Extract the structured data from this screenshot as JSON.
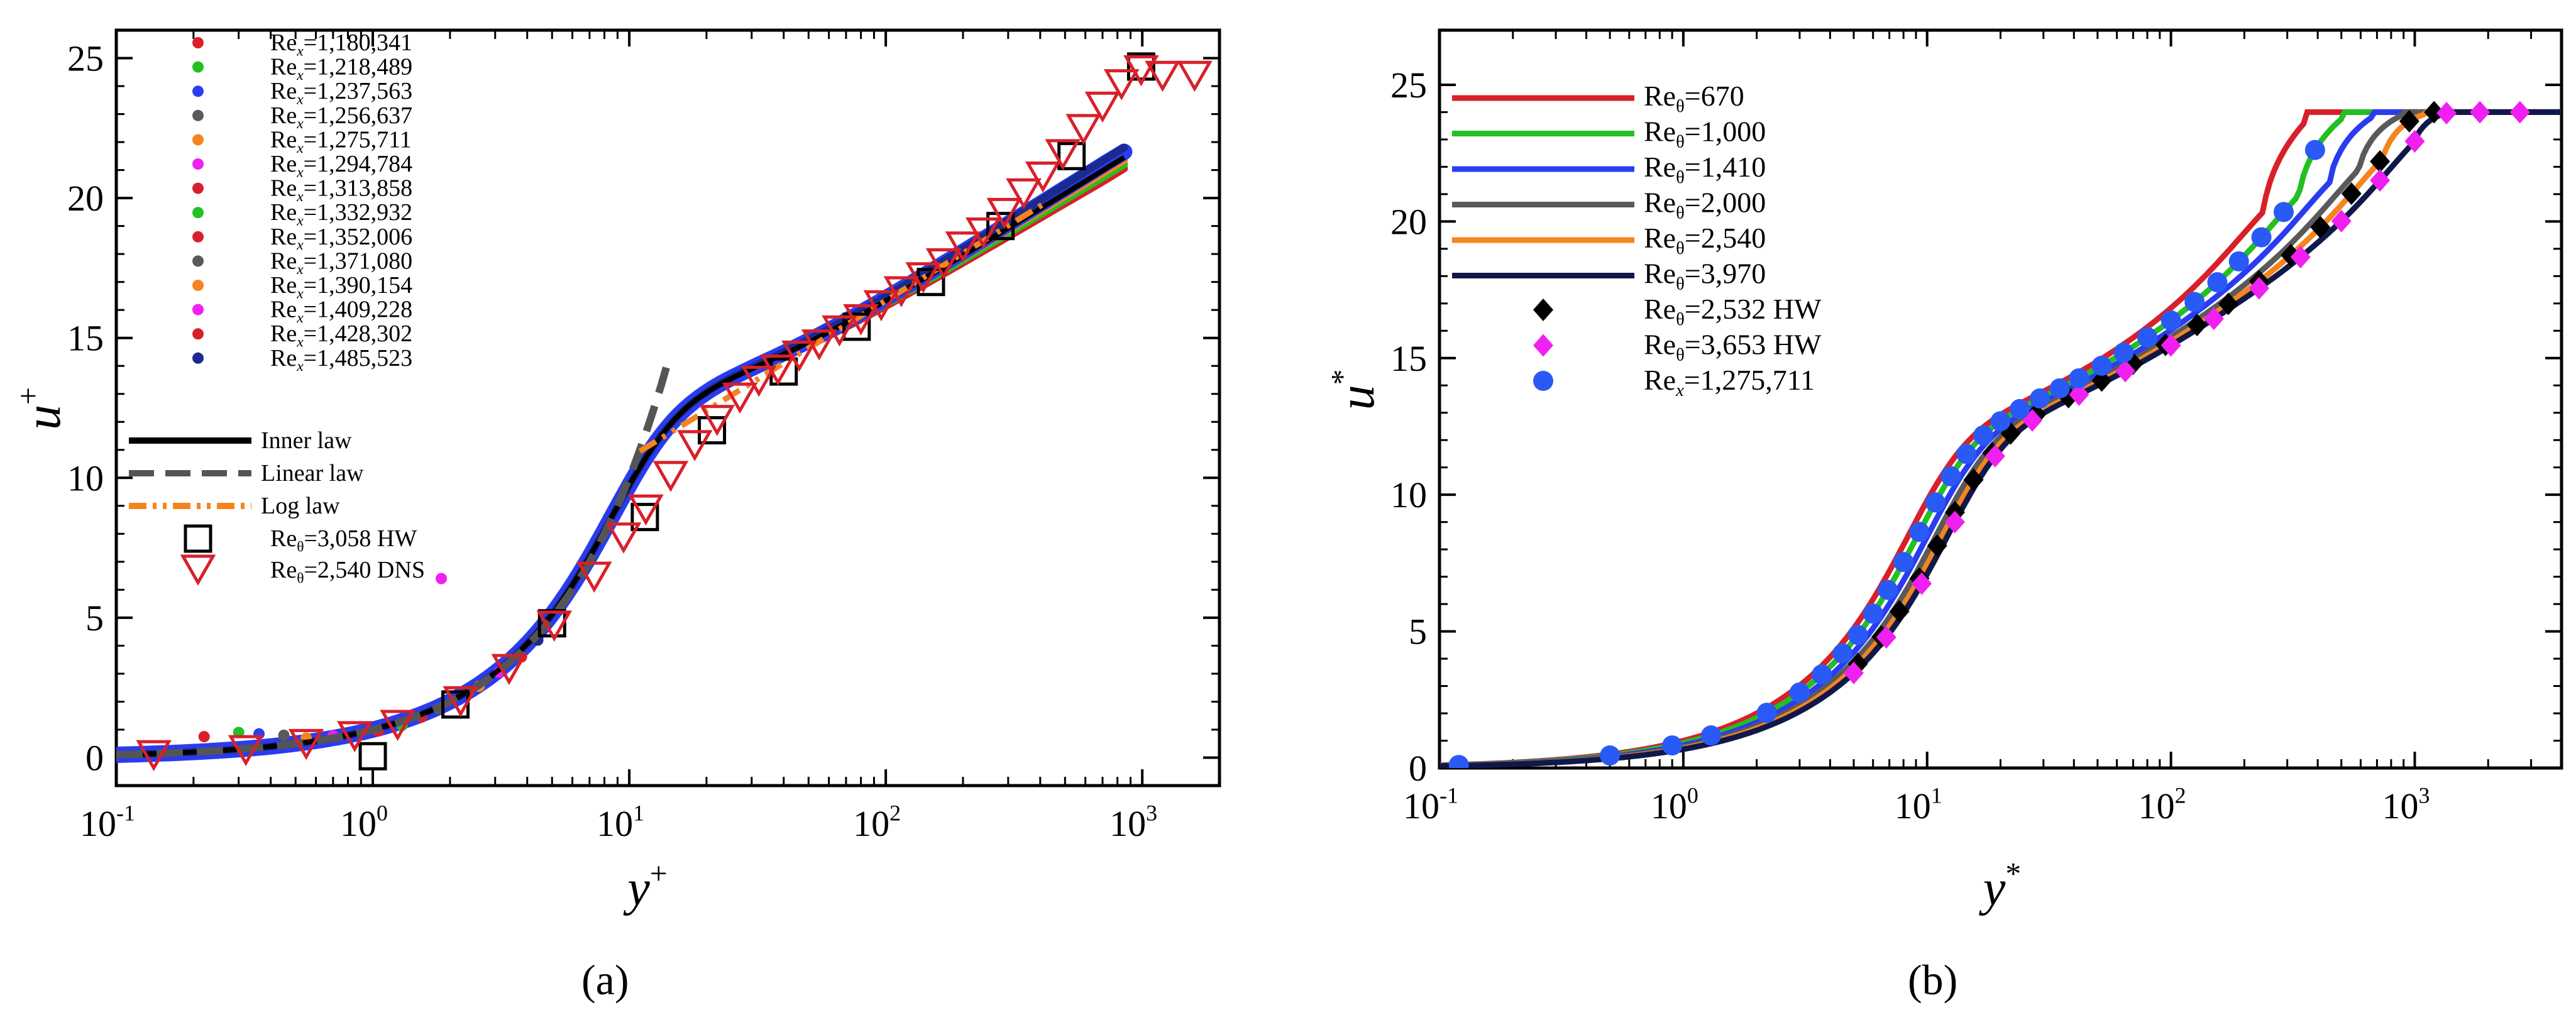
{
  "figure": {
    "caption_a": "(a)",
    "caption_b": "(b)"
  },
  "chart_data": [
    {
      "id": "a",
      "type": "scatter",
      "xscale": "log",
      "xlim": [
        0.1,
        2000
      ],
      "ylim": [
        -1,
        26
      ],
      "xticks": [
        0.1,
        1,
        10,
        100,
        1000
      ],
      "xtick_labels": [
        [
          "10",
          "-1"
        ],
        [
          "10",
          "0"
        ],
        [
          "10",
          "1"
        ],
        [
          "10",
          "2"
        ],
        [
          "10",
          "3"
        ]
      ],
      "yticks": [
        0,
        5,
        10,
        15,
        20,
        25
      ],
      "ytick_labels": [
        "0",
        "5",
        "10",
        "15",
        "20",
        "25"
      ],
      "xlabel": "y",
      "xlabel_sup": "+",
      "ylabel": "u",
      "ylabel_sup": "+",
      "legend_position": "top-left",
      "series": [
        {
          "name": "Re_x=1,180,341",
          "kind": "dot",
          "color": "#d8202a",
          "sub": "x",
          "label_rest": "=1,180,341",
          "id": 0
        },
        {
          "name": "Re_x=1,218,489",
          "kind": "dot",
          "color": "#22c020",
          "sub": "x",
          "label_rest": "=1,218,489",
          "id": 1
        },
        {
          "name": "Re_x=1,237,563",
          "kind": "dot",
          "color": "#2a3cf0",
          "sub": "x",
          "label_rest": "=1,237,563",
          "id": 2
        },
        {
          "name": "Re_x=1,256,637",
          "kind": "dot",
          "color": "#5a5a5a",
          "sub": "x",
          "label_rest": "=1,256,637",
          "id": 3
        },
        {
          "name": "Re_x=1,275,711",
          "kind": "dot",
          "color": "#f5841f",
          "sub": "x",
          "label_rest": "=1,275,711",
          "id": 4
        },
        {
          "name": "Re_x=1,294,784",
          "kind": "dot",
          "color": "#f020f0",
          "sub": "x",
          "label_rest": "=1,294,784",
          "id": 5
        },
        {
          "name": "Re_x=1,313,858",
          "kind": "dot",
          "color": "#d8202a",
          "sub": "x",
          "label_rest": "=1,313,858",
          "id": 6
        },
        {
          "name": "Re_x=1,332,932",
          "kind": "dot",
          "color": "#22c020",
          "sub": "x",
          "label_rest": "=1,332,932",
          "id": 7
        },
        {
          "name": "Re_x=1,352,006",
          "kind": "dot",
          "color": "#d8202a",
          "sub": "x",
          "label_rest": "=1,352,006",
          "id": 8
        },
        {
          "name": "Re_x=1,371,080",
          "kind": "dot",
          "color": "#5a5a5a",
          "sub": "x",
          "label_rest": "=1,371,080",
          "id": 9
        },
        {
          "name": "Re_x=1,390,154",
          "kind": "dot",
          "color": "#f5841f",
          "sub": "x",
          "label_rest": "=1,390,154",
          "id": 10
        },
        {
          "name": "Re_x=1,409,228",
          "kind": "dot",
          "color": "#f020f0",
          "sub": "x",
          "label_rest": "=1,409,228",
          "id": 11
        },
        {
          "name": "Re_x=1,428,302",
          "kind": "dot",
          "color": "#d8202a",
          "sub": "x",
          "label_rest": "=1,428,302",
          "id": 12
        },
        {
          "name": "Re_x=1,485,523",
          "kind": "dot",
          "color": "#1a2a90",
          "sub": "x",
          "label_rest": "=1,485,523",
          "id": 13
        },
        {
          "name": "Inner law",
          "kind": "line",
          "color": "#000000",
          "dash": "solid",
          "label": "Inner law"
        },
        {
          "name": "Linear law",
          "kind": "line",
          "color": "#555555",
          "dash": "dash",
          "label": "Linear law"
        },
        {
          "name": "Log law",
          "kind": "line",
          "color": "#f5841f",
          "dash": "dashdotdot",
          "label": "Log law"
        },
        {
          "name": "Re_theta=3,058 HW",
          "kind": "square",
          "color": "#000000",
          "sub": "θ",
          "label_rest": "=3,058 HW"
        },
        {
          "name": "Re_theta=2,540 DNS",
          "kind": "triangle",
          "color": "#d8202a",
          "sub": "θ",
          "label_rest": "=2,540 DNS"
        }
      ],
      "hw_points": [
        [
          1.0,
          0.05
        ],
        [
          2.1,
          1.9
        ],
        [
          5.0,
          4.8
        ],
        [
          11.5,
          8.6
        ],
        [
          21,
          11.7
        ],
        [
          40,
          13.8
        ],
        [
          77,
          15.4
        ],
        [
          150,
          17.0
        ],
        [
          280,
          19.0
        ],
        [
          530,
          21.5
        ],
        [
          990,
          24.7
        ]
      ],
      "dns_points": [
        [
          0.14,
          0.12
        ],
        [
          0.32,
          0.3
        ],
        [
          0.55,
          0.52
        ],
        [
          0.85,
          0.8
        ],
        [
          1.25,
          1.2
        ],
        [
          2.2,
          2.05
        ],
        [
          3.4,
          3.2
        ],
        [
          5.1,
          4.75
        ],
        [
          7.3,
          6.5
        ],
        [
          9.5,
          7.9
        ],
        [
          11.6,
          8.9
        ],
        [
          14.5,
          10.1
        ],
        [
          18,
          11.2
        ],
        [
          22,
          12.1
        ],
        [
          27,
          12.9
        ],
        [
          32,
          13.5
        ],
        [
          38,
          13.9
        ],
        [
          46,
          14.4
        ],
        [
          55,
          14.8
        ],
        [
          66,
          15.3
        ],
        [
          80,
          15.7
        ],
        [
          96,
          16.2
        ],
        [
          115,
          16.7
        ],
        [
          140,
          17.2
        ],
        [
          168,
          17.7
        ],
        [
          200,
          18.3
        ],
        [
          240,
          18.8
        ],
        [
          290,
          19.5
        ],
        [
          345,
          20.2
        ],
        [
          410,
          20.8
        ],
        [
          490,
          21.6
        ],
        [
          590,
          22.5
        ],
        [
          700,
          23.3
        ],
        [
          830,
          24.1
        ],
        [
          990,
          24.6
        ],
        [
          1200,
          24.4
        ],
        [
          1600,
          24.4
        ]
      ],
      "stray_point": [
        1.85,
        6.4
      ]
    },
    {
      "id": "b",
      "type": "line",
      "xscale": "log",
      "xlim": [
        0.1,
        4000
      ],
      "ylim": [
        0,
        27
      ],
      "xticks": [
        0.1,
        1,
        10,
        100,
        1000
      ],
      "xtick_labels": [
        [
          "10",
          "-1"
        ],
        [
          "10",
          "0"
        ],
        [
          "10",
          "1"
        ],
        [
          "10",
          "2"
        ],
        [
          "10",
          "3"
        ]
      ],
      "yticks": [
        0,
        5,
        10,
        15,
        20,
        25
      ],
      "ytick_labels": [
        "0",
        "5",
        "10",
        "15",
        "20",
        "25"
      ],
      "xlabel": "y",
      "xlabel_sup": "*",
      "ylabel": "u",
      "ylabel_sup": "*",
      "legend_position": "top-left",
      "plateau": 24,
      "series": [
        {
          "name": "Re_theta=670",
          "color": "#d8202a",
          "sub": "θ",
          "label_rest": "=670",
          "s": 1.0,
          "delta": 300
        },
        {
          "name": "Re_theta=1,000",
          "color": "#22c020",
          "sub": "θ",
          "label_rest": "=1,000",
          "s": 1.09,
          "delta": 420
        },
        {
          "name": "Re_theta=1,410",
          "color": "#2a3cf0",
          "sub": "θ",
          "label_rest": "=1,410",
          "s": 1.2,
          "delta": 560
        },
        {
          "name": "Re_theta=2,000",
          "color": "#5a5a5a",
          "sub": "θ",
          "label_rest": "=2,000",
          "s": 1.3,
          "delta": 740
        },
        {
          "name": "Re_theta=2,540",
          "color": "#f5841f",
          "sub": "θ",
          "label_rest": "=2,540",
          "s": 1.38,
          "delta": 930
        },
        {
          "name": "Re_theta=3,970",
          "color": "#10184a",
          "sub": "θ",
          "label_rest": "=3,970",
          "s": 1.45,
          "delta": 1250
        }
      ],
      "markers": [
        {
          "name": "Re_theta=2,532 HW",
          "kind": "diamond",
          "color": "#000000",
          "sub": "θ",
          "label_rest": "=2,532 HW",
          "s": 1.38,
          "delta": 930,
          "x": [
            5.2,
            6.5,
            7.7,
            9.3,
            11,
            13,
            15.5,
            18.5,
            22,
            28,
            38,
            52,
            70,
            95,
            128,
            172,
            230,
            310,
            410,
            550,
            720,
            950,
            1200
          ]
        },
        {
          "name": "Re_theta=3,653 HW",
          "kind": "diamond",
          "color": "#f020f0",
          "sub": "θ",
          "label_rest": "=3,653 HW",
          "s": 1.45,
          "delta": 1250,
          "x": [
            5.0,
            6.8,
            9.5,
            13,
            19,
            27,
            42,
            65,
            100,
            150,
            230,
            340,
            500,
            720,
            1000,
            1350,
            1850,
            2700
          ]
        },
        {
          "name": "Re_x=1,275,711",
          "kind": "circle",
          "color": "#2a5af5",
          "sub": "x",
          "label_rest": "=1,275,711",
          "s": 1.09,
          "delta": 420,
          "x": [
            0.12,
            0.5,
            0.9,
            1.3,
            2.2,
            3.0,
            3.7,
            4.5,
            5.2,
            6.0,
            6.9,
            8.0,
            9.3,
            10.8,
            12.5,
            14.5,
            17,
            20,
            24,
            29,
            35,
            42,
            52,
            64,
            80,
            100,
            125,
            155,
            190,
            235,
            290,
            390
          ]
        }
      ]
    }
  ]
}
